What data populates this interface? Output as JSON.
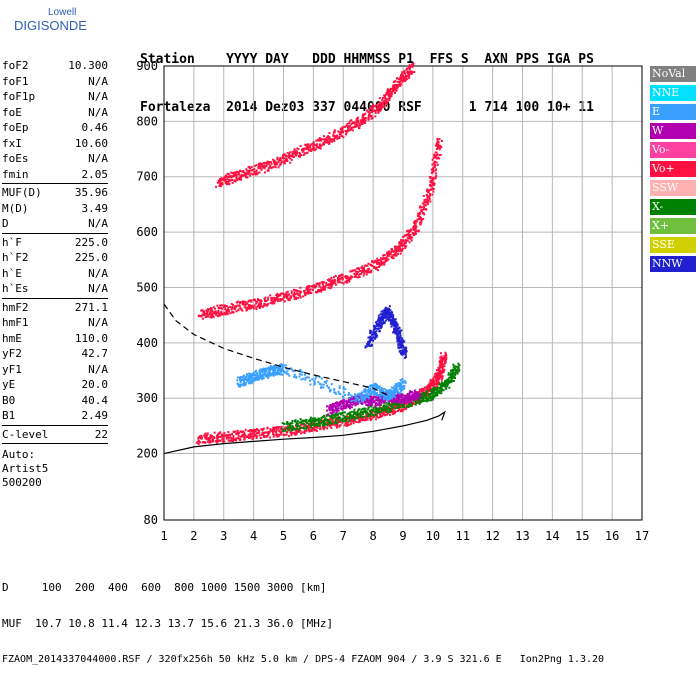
{
  "logo": {
    "line1": "Lowell",
    "line2": "DIGISONDE"
  },
  "header": {
    "line1": "Station    YYYY DAY   DDD HHMMSS P1  FFS S  AXN PPS IGA PS",
    "line2": "Fortaleza  2014 Dez03 337 044000 RSF      1 714 100 10+ 11"
  },
  "params": [
    {
      "name": "foF2",
      "value": "10.300"
    },
    {
      "name": "foF1",
      "value": "N/A"
    },
    {
      "name": "foF1p",
      "value": "N/A"
    },
    {
      "name": "foE",
      "value": "N/A"
    },
    {
      "name": "foEp",
      "value": "0.46"
    },
    {
      "name": "fxI",
      "value": "10.60"
    },
    {
      "name": "foEs",
      "value": "N/A"
    },
    {
      "name": "fmin",
      "value": "2.05"
    },
    {
      "sep": true
    },
    {
      "name": "MUF(D)",
      "value": "35.96"
    },
    {
      "name": "M(D)",
      "value": "3.49"
    },
    {
      "name": "D",
      "value": "N/A"
    },
    {
      "sep": true
    },
    {
      "name": "h`F",
      "value": "225.0"
    },
    {
      "name": "h`F2",
      "value": "225.0"
    },
    {
      "name": "h`E",
      "value": "N/A"
    },
    {
      "name": "h`Es",
      "value": "N/A"
    },
    {
      "sep": true
    },
    {
      "name": "hmF2",
      "value": "271.1"
    },
    {
      "name": "hmF1",
      "value": "N/A"
    },
    {
      "name": "hmE",
      "value": "110.0"
    },
    {
      "name": "yF2",
      "value": "42.7"
    },
    {
      "name": "yF1",
      "value": "N/A"
    },
    {
      "name": "yE",
      "value": "20.0"
    },
    {
      "name": "B0",
      "value": "40.4"
    },
    {
      "name": "B1",
      "value": "2.49"
    },
    {
      "sep": true
    },
    {
      "name": "C-level",
      "value": "22"
    },
    {
      "sep": true
    }
  ],
  "auto": {
    "line1": "Auto:",
    "line2": "Artist5",
    "line3": "500200"
  },
  "legend": [
    {
      "label": "NoVal",
      "color": "#808080"
    },
    {
      "label": "NNE",
      "color": "#00e0ff"
    },
    {
      "label": "E",
      "color": "#3aa0ff"
    },
    {
      "label": "W",
      "color": "#b000b0"
    },
    {
      "label": "Vo-",
      "color": "#ff40a0"
    },
    {
      "label": "Vo+",
      "color": "#ff1040"
    },
    {
      "label": "SSW",
      "color": "#ffb0b0"
    },
    {
      "label": "X-",
      "color": "#008000"
    },
    {
      "label": "X+",
      "color": "#70c040"
    },
    {
      "label": "SSE",
      "color": "#d0d000"
    },
    {
      "label": "NNW",
      "color": "#2020d0"
    }
  ],
  "footer": {
    "line1": "D     100  200  400  600  800 1000 1500 3000 [km]",
    "line2": "MUF  10.7 10.8 11.4 12.3 13.7 15.6 21.3 36.0 [MHz]",
    "line3": "FZAOM_2014337044000.RSF / 320fx256h 50 kHz 5.0 km / DPS-4 FZAOM 904 / 3.9 S 321.6 E   Ion2Png 1.3.20"
  },
  "chart_data": {
    "type": "scatter",
    "xlim": [
      1,
      17
    ],
    "ylim": [
      80,
      900
    ],
    "xticks": [
      "1",
      "2",
      "3",
      "4",
      "5",
      "6",
      "7",
      "8",
      "9",
      "10",
      "11",
      "12",
      "13",
      "14",
      "15",
      "16",
      "17"
    ],
    "yticks": [
      "80",
      "200",
      "300",
      "400",
      "500",
      "600",
      "700",
      "800",
      "900"
    ],
    "grid": true,
    "legend_position": "right",
    "traces": [
      {
        "name": "O-trace 1st hop",
        "color": "#ff1040",
        "x": [
          2.1,
          3.0,
          4.0,
          5.0,
          6.0,
          7.0,
          8.0,
          8.8,
          9.4,
          9.9,
          10.2,
          10.35
        ],
        "y": [
          228,
          232,
          237,
          242,
          250,
          260,
          272,
          285,
          300,
          320,
          345,
          380
        ]
      },
      {
        "name": "O-trace 2nd hop",
        "color": "#ff1040",
        "x": [
          2.2,
          3.0,
          4.0,
          5.0,
          6.0,
          7.0,
          8.0,
          8.8,
          9.4,
          9.9,
          10.2
        ],
        "y": [
          452,
          462,
          472,
          485,
          500,
          518,
          540,
          570,
          610,
          680,
          770
        ]
      },
      {
        "name": "O-trace 3rd hop",
        "color": "#ff1040",
        "x": [
          2.8,
          3.5,
          4.5,
          5.5,
          6.5,
          7.5,
          8.2,
          8.8,
          9.3
        ],
        "y": [
          690,
          705,
          722,
          745,
          770,
          800,
          830,
          870,
          900
        ]
      },
      {
        "name": "X-trace",
        "color": "#008000",
        "x": [
          5.0,
          6.0,
          7.0,
          8.0,
          9.0,
          9.8,
          10.4,
          10.8
        ],
        "y": [
          250,
          258,
          268,
          280,
          293,
          305,
          325,
          360
        ]
      },
      {
        "name": "W scatter",
        "color": "#b000b0",
        "x": [
          6.5,
          7.0,
          7.5,
          8.0,
          8.5,
          9.0,
          9.5
        ],
        "y": [
          280,
          290,
          300,
          295,
          305,
          300,
          310
        ]
      },
      {
        "name": "NNW scatter",
        "color": "#2020d0",
        "x": [
          7.8,
          8.2,
          8.5,
          8.8,
          9.0
        ],
        "y": [
          400,
          440,
          460,
          420,
          380
        ]
      },
      {
        "name": "E scatter",
        "color": "#3aa0ff",
        "x": [
          3.5,
          4.0,
          4.5,
          5.0,
          7.5,
          8.0,
          8.5,
          9.0
        ],
        "y": [
          330,
          340,
          350,
          355,
          300,
          320,
          305,
          330
        ]
      }
    ],
    "curves": [
      {
        "name": "profile solid",
        "style": "solid",
        "x": [
          1.0,
          2.0,
          3.0,
          4.0,
          5.0,
          6.0,
          7.0,
          8.0,
          9.0,
          9.8,
          10.2,
          10.4,
          10.3
        ],
        "y": [
          200,
          212,
          218,
          222,
          226,
          229,
          233,
          240,
          250,
          260,
          268,
          275,
          260
        ]
      },
      {
        "name": "profile dashed",
        "style": "dashed",
        "x": [
          1.0,
          1.4,
          2.0,
          3.0,
          4.0,
          5.0,
          6.0,
          7.0,
          8.0,
          8.5
        ],
        "y": [
          470,
          440,
          415,
          390,
          372,
          356,
          342,
          330,
          318,
          305
        ]
      }
    ]
  }
}
